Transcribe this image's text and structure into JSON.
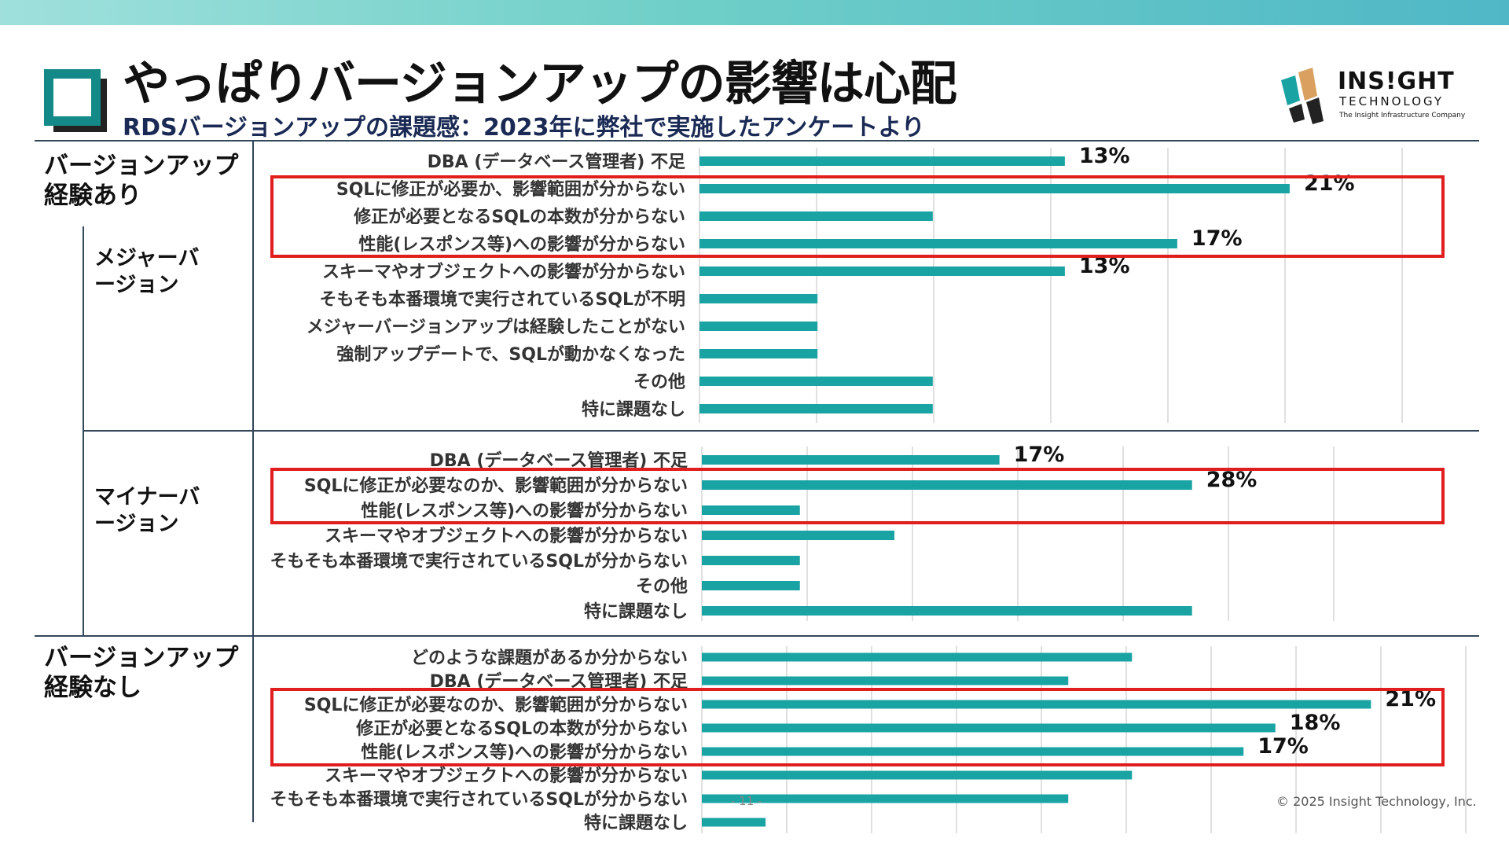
{
  "page": {
    "title": "やっぱりバージョンアップの影響は心配",
    "subtitle": "RDSバージョンアップの課題感：2023年に弊社で実施したアンケートより",
    "logo": {
      "main": "INS!GHT",
      "sub": "TECHNOLOGY",
      "tagline": "The Insight Infrastructure Company"
    },
    "footer_page": "- 11 -",
    "copyright": "© 2025 Insight Technology, Inc.",
    "colors": {
      "bar": "#1aa3a3",
      "highlight": "#e01e1e",
      "accent": "#148a88",
      "topbar": "#6fcfc8"
    }
  },
  "sections": {
    "experienced": "バージョンアップ\n経験あり",
    "major": "メジャーバ\nージョン",
    "minor": "マイナーバ\nージョン",
    "none": "バージョンアップ\n経験なし"
  },
  "chart_data": [
    {
      "type": "bar",
      "orientation": "horizontal",
      "group": "バージョンアップ経験あり / メジャーバージョン",
      "categories": [
        "DBA (データベース管理者) 不足",
        "SQLに修正が必要か、影響範囲が分からない",
        "修正が必要となるSQLの本数が分からない",
        "性能(レスポンス等)への影響が分からない",
        "スキーマやオブジェクトへの影響が分からない",
        "そもそも本番環境で実行されているSQLが不明",
        "メジャーバージョンアップは経験したことがない",
        "強制アップデートで、SQLが動かなくなった",
        "その他",
        "特に課題なし"
      ],
      "values": [
        13,
        21,
        8.3,
        17,
        13,
        4.2,
        4.2,
        4.2,
        8.3,
        8.3
      ],
      "data_labels": [
        "13%",
        "21%",
        "",
        "17%",
        "13%",
        "",
        "",
        "",
        "",
        ""
      ],
      "xlim": [
        0,
        25
      ],
      "grid": true,
      "highlighted": [
        1,
        2,
        3
      ]
    },
    {
      "type": "bar",
      "orientation": "horizontal",
      "group": "バージョンアップ経験あり / マイナーバージョン",
      "categories": [
        "DBA (データベース管理者) 不足",
        "SQLに修正が必要なのか、影響範囲が分からない",
        "性能(レスポンス等)への影響が分からない",
        "スキーマやオブジェクトへの影響が分からない",
        "そもそも本番環境で実行されているSQLが分からない",
        "その他",
        "特に課題なし"
      ],
      "values": [
        17,
        28,
        5.6,
        11,
        5.6,
        5.6,
        28
      ],
      "data_labels": [
        "17%",
        "28%",
        "",
        "",
        "",
        "",
        ""
      ],
      "xlim": [
        0,
        40
      ],
      "grid": true,
      "highlighted": [
        1,
        2
      ]
    },
    {
      "type": "bar",
      "orientation": "horizontal",
      "group": "バージョンアップ経験なし",
      "categories": [
        "どのような課題があるか分からない",
        "DBA (データベース管理者) 不足",
        "SQLに修正が必要なのか、影響範囲が分からない",
        "修正が必要となるSQLの本数が分からない",
        "性能(レスポンス等)への影響が分からない",
        "スキーマやオブジェクトへの影響が分からない",
        "そもそも本番環境で実行されているSQLが分からない",
        "特に課題なし"
      ],
      "values": [
        13.5,
        11.5,
        21,
        18,
        17,
        13.5,
        11.5,
        2
      ],
      "data_labels": [
        "",
        "",
        "21%",
        "18%",
        "17%",
        "",
        "",
        ""
      ],
      "xlim": [
        0,
        24
      ],
      "grid": true,
      "highlighted": [
        2,
        3,
        4
      ]
    }
  ]
}
